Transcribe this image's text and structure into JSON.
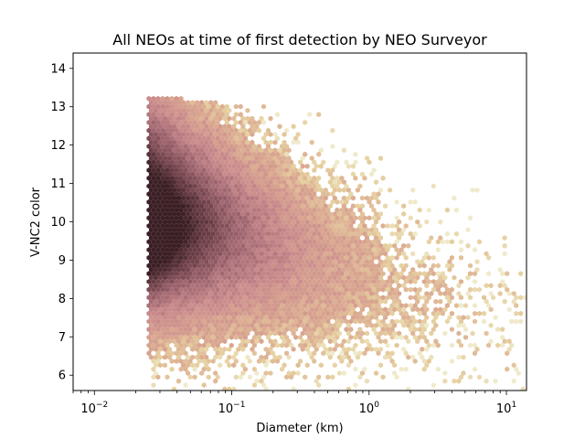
{
  "chart_data": {
    "type": "hexbin",
    "title": "All NEOs at time of first detection by NEO Surveyor",
    "xlabel": "Diameter (km)",
    "ylabel": "V-NC2 color",
    "x_scale": "log",
    "xlim": [
      0.007,
      14
    ],
    "ylim": [
      5.6,
      14.4
    ],
    "x_ticks": [
      {
        "base": "10",
        "exp": "−2",
        "value": 0.01
      },
      {
        "base": "10",
        "exp": "−1",
        "value": 0.1
      },
      {
        "base": "10",
        "exp": "0",
        "value": 1
      },
      {
        "base": "10",
        "exp": "1",
        "value": 10
      }
    ],
    "y_ticks": [
      "6",
      "7",
      "8",
      "9",
      "10",
      "11",
      "12",
      "13",
      "14"
    ],
    "grid": false,
    "legend": "none",
    "colormap": [
      "#efeacb",
      "#e6cf9f",
      "#d9a58f",
      "#c98a8c",
      "#a06670",
      "#6e4049",
      "#3b1f25"
    ],
    "density_regions": [
      {
        "diameter_range": [
          0.025,
          0.06
        ],
        "color_range": [
          9.2,
          12.8
        ],
        "level": "peak"
      },
      {
        "diameter_range": [
          0.025,
          0.4
        ],
        "color_range": [
          8.4,
          12.8
        ],
        "level": "high"
      },
      {
        "diameter_range": [
          0.025,
          2.0
        ],
        "color_range": [
          7.0,
          13.2
        ],
        "level": "medium"
      },
      {
        "diameter_range": [
          0.3,
          8.0
        ],
        "color_range": [
          6.0,
          12.6
        ],
        "level": "low"
      }
    ]
  }
}
